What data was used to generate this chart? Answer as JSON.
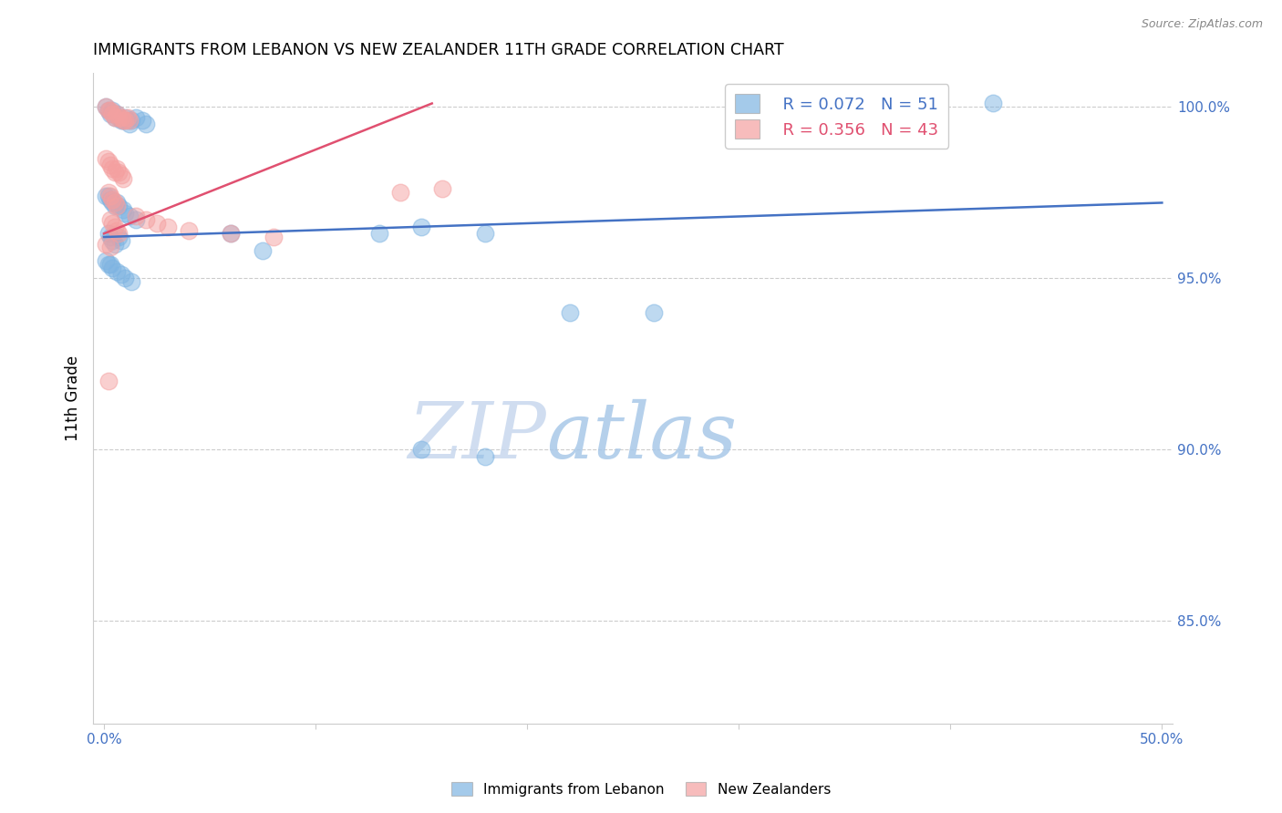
{
  "title": "IMMIGRANTS FROM LEBANON VS NEW ZEALANDER 11TH GRADE CORRELATION CHART",
  "source": "Source: ZipAtlas.com",
  "ylabel": "11th Grade",
  "xlim": [
    -0.005,
    0.505
  ],
  "ylim": [
    0.82,
    1.01
  ],
  "xticks": [
    0.0,
    0.1,
    0.2,
    0.3,
    0.4,
    0.5
  ],
  "xtick_labels": [
    "0.0%",
    "",
    "",
    "",
    "",
    "50.0%"
  ],
  "yticks": [
    0.85,
    0.9,
    0.95,
    1.0
  ],
  "ytick_labels_right": [
    "85.0%",
    "90.0%",
    "95.0%",
    "100.0%"
  ],
  "blue_color": "#7EB4E2",
  "pink_color": "#F4A0A0",
  "blue_line_color": "#4472C4",
  "pink_line_color": "#E05070",
  "legend_blue_R": "R = 0.072",
  "legend_blue_N": "N = 51",
  "legend_pink_R": "R = 0.356",
  "legend_pink_N": "N = 43",
  "watermark_zip": "ZIP",
  "watermark_atlas": "atlas",
  "blue_scatter_x": [
    0.001,
    0.002,
    0.003,
    0.004,
    0.005,
    0.006,
    0.007,
    0.008,
    0.009,
    0.01,
    0.011,
    0.012,
    0.013,
    0.015,
    0.018,
    0.02,
    0.001,
    0.002,
    0.003,
    0.004,
    0.005,
    0.006,
    0.007,
    0.009,
    0.01,
    0.012,
    0.015,
    0.002,
    0.003,
    0.004,
    0.005,
    0.007,
    0.008,
    0.06,
    0.075,
    0.13,
    0.15,
    0.18,
    0.22,
    0.26,
    0.001,
    0.002,
    0.003,
    0.004,
    0.006,
    0.008,
    0.01,
    0.013,
    0.42,
    0.15,
    0.18
  ],
  "blue_scatter_y": [
    1.0,
    0.999,
    0.998,
    0.999,
    0.997,
    0.998,
    0.997,
    0.996,
    0.996,
    0.997,
    0.996,
    0.995,
    0.996,
    0.997,
    0.996,
    0.995,
    0.974,
    0.974,
    0.973,
    0.972,
    0.971,
    0.972,
    0.971,
    0.97,
    0.969,
    0.968,
    0.967,
    0.963,
    0.962,
    0.961,
    0.96,
    0.962,
    0.961,
    0.963,
    0.958,
    0.963,
    0.965,
    0.963,
    0.94,
    0.94,
    0.955,
    0.954,
    0.954,
    0.953,
    0.952,
    0.951,
    0.95,
    0.949,
    1.001,
    0.9,
    0.898
  ],
  "pink_scatter_x": [
    0.001,
    0.002,
    0.003,
    0.004,
    0.005,
    0.006,
    0.007,
    0.008,
    0.009,
    0.01,
    0.011,
    0.012,
    0.001,
    0.002,
    0.003,
    0.004,
    0.005,
    0.006,
    0.007,
    0.008,
    0.009,
    0.002,
    0.003,
    0.004,
    0.005,
    0.006,
    0.003,
    0.004,
    0.005,
    0.006,
    0.007,
    0.015,
    0.02,
    0.025,
    0.03,
    0.04,
    0.06,
    0.08,
    0.14,
    0.16,
    0.001,
    0.002,
    0.003
  ],
  "pink_scatter_y": [
    1.0,
    0.999,
    0.999,
    0.998,
    0.997,
    0.998,
    0.997,
    0.997,
    0.996,
    0.996,
    0.997,
    0.996,
    0.985,
    0.984,
    0.983,
    0.982,
    0.981,
    0.982,
    0.981,
    0.98,
    0.979,
    0.975,
    0.974,
    0.973,
    0.972,
    0.971,
    0.967,
    0.966,
    0.965,
    0.964,
    0.963,
    0.968,
    0.967,
    0.966,
    0.965,
    0.964,
    0.963,
    0.962,
    0.975,
    0.976,
    0.96,
    0.92,
    0.959
  ],
  "blue_line_x0": 0.0,
  "blue_line_x1": 0.5,
  "blue_line_y0": 0.962,
  "blue_line_y1": 0.972,
  "pink_line_x0": 0.0,
  "pink_line_x1": 0.155,
  "pink_line_y0": 0.963,
  "pink_line_y1": 1.001
}
